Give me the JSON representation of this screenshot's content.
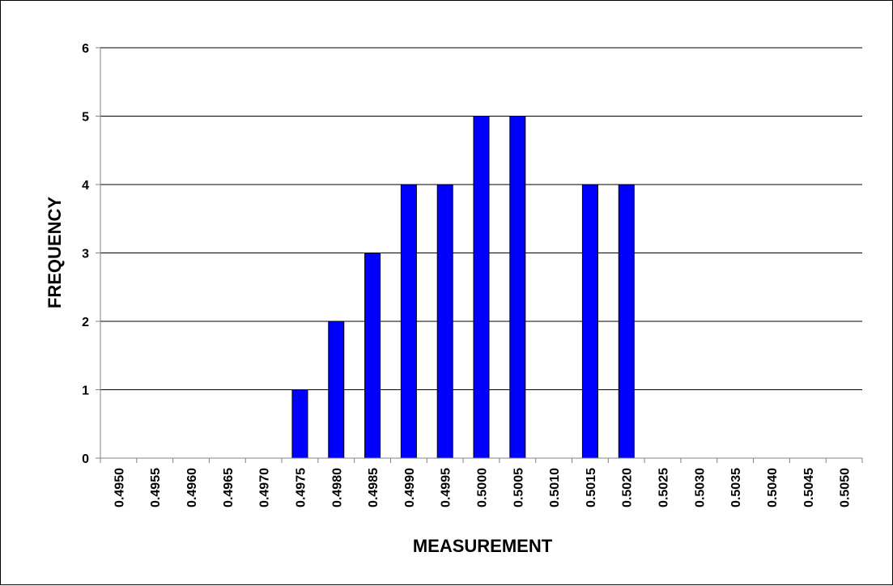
{
  "chart_data": {
    "type": "bar",
    "title": "",
    "xlabel": "MEASUREMENT",
    "ylabel": "FREQUENCY",
    "ylim": [
      0,
      6
    ],
    "yticks": [
      "0",
      "1",
      "2",
      "3",
      "4",
      "5",
      "6"
    ],
    "grid": "horizontal",
    "legend": "none",
    "categories": [
      "0.4950",
      "0.4955",
      "0.4960",
      "0.4965",
      "0.4970",
      "0.4975",
      "0.4980",
      "0.4985",
      "0.4990",
      "0.4995",
      "0.5000",
      "0.5005",
      "0.5010",
      "0.5015",
      "0.5020",
      "0.5025",
      "0.5030",
      "0.5035",
      "0.5040",
      "0.5045",
      "0.5050"
    ],
    "values": [
      0,
      0,
      0,
      0,
      0,
      1,
      2,
      3,
      4,
      4,
      5,
      5,
      0,
      4,
      4,
      0,
      0,
      0,
      0,
      0,
      0
    ],
    "colors": {
      "bar": "#0000FF",
      "bar_stroke": "#000000",
      "grid": "#000000",
      "axis": "#808080"
    }
  }
}
